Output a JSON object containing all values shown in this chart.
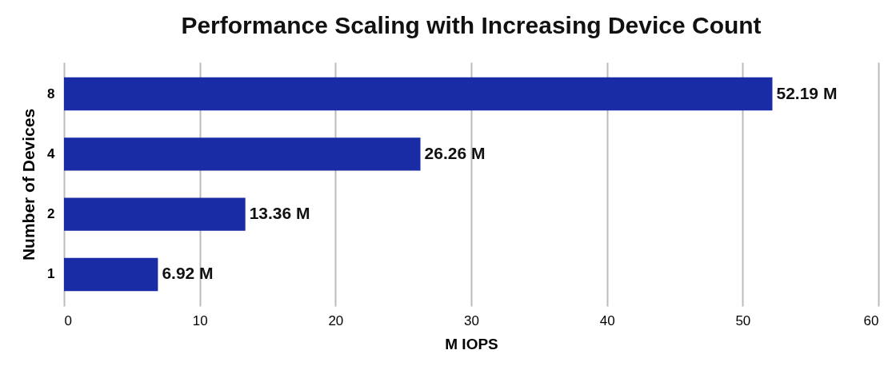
{
  "chart_data": {
    "type": "bar",
    "orientation": "horizontal",
    "title": "Performance Scaling with Increasing Device Count",
    "xlabel": "M IOPS",
    "ylabel": "Number of Devices",
    "categories": [
      "8",
      "4",
      "2",
      "1"
    ],
    "values": [
      52.19,
      26.26,
      13.36,
      6.92
    ],
    "value_labels": [
      "52.19 M",
      "26.26 M",
      "13.36 M",
      "6.92 M"
    ],
    "color": "#1a2ba6",
    "xlim": [
      0,
      60
    ],
    "xticks": [
      0,
      10,
      20,
      30,
      40,
      50,
      60
    ],
    "grid": "x"
  }
}
